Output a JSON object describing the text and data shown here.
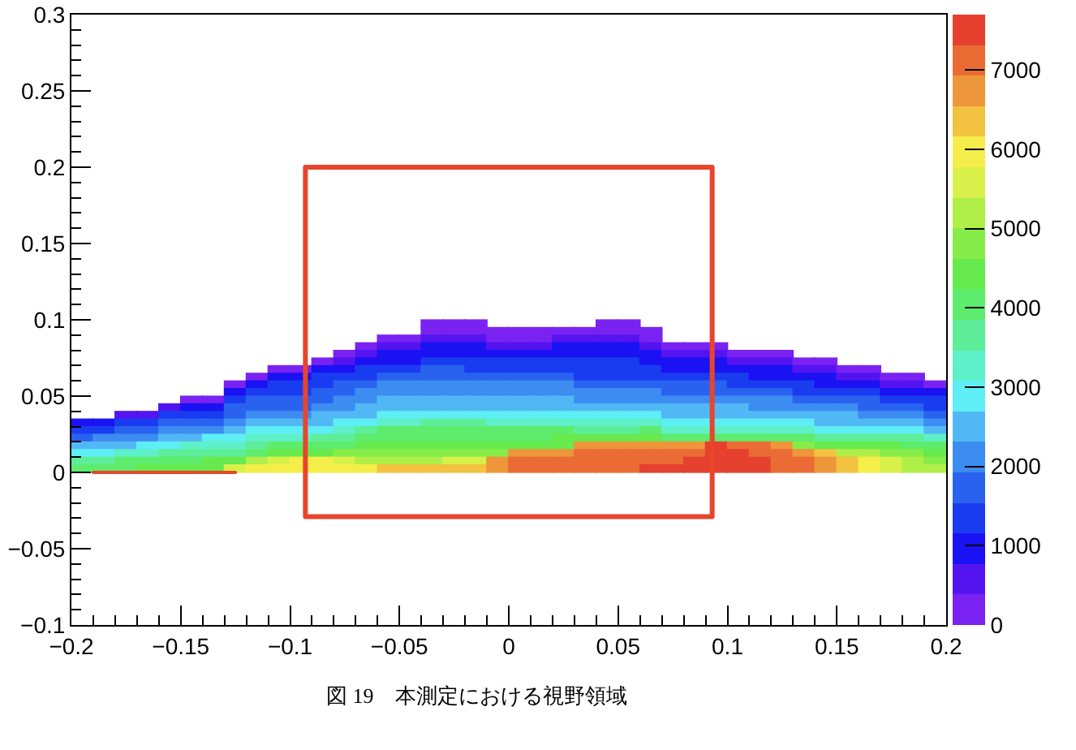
{
  "chart_data": {
    "type": "scatter",
    "marker": "square",
    "clim": [
      0,
      7700
    ],
    "cticks": [
      0,
      1000,
      2000,
      3000,
      4000,
      5000,
      6000,
      7000
    ],
    "xlim": [
      -0.2,
      0.2
    ],
    "xticks": [
      -0.2,
      {
        "value": -0.19,
        "label": null
      },
      {
        "value": -0.18,
        "label": null
      },
      {
        "value": -0.17,
        "label": null
      },
      {
        "value": -0.16,
        "label": null
      },
      -0.15,
      {
        "value": -0.14,
        "label": null
      },
      {
        "value": -0.13,
        "label": null
      },
      {
        "value": -0.12,
        "label": null
      },
      {
        "value": -0.11,
        "label": null
      },
      -0.1,
      {
        "value": -0.09,
        "label": null
      },
      {
        "value": -0.08,
        "label": null
      },
      {
        "value": -0.07,
        "label": null
      },
      {
        "value": -0.06,
        "label": null
      },
      -0.05,
      {
        "value": -0.04,
        "label": null
      },
      {
        "value": -0.03,
        "label": null
      },
      {
        "value": -0.02,
        "label": null
      },
      {
        "value": -0.01,
        "label": null
      },
      0,
      {
        "value": 0.01,
        "label": null
      },
      {
        "value": 0.02,
        "label": null
      },
      {
        "value": 0.03,
        "label": null
      },
      {
        "value": 0.04,
        "label": null
      },
      0.05,
      {
        "value": 0.06,
        "label": null
      },
      {
        "value": 0.07,
        "label": null
      },
      {
        "value": 0.08,
        "label": null
      },
      {
        "value": 0.09,
        "label": null
      },
      0.1,
      {
        "value": 0.11,
        "label": null
      },
      {
        "value": 0.12,
        "label": null
      },
      {
        "value": 0.13,
        "label": null
      },
      {
        "value": 0.14,
        "label": null
      },
      0.15,
      {
        "value": 0.16,
        "label": null
      },
      {
        "value": 0.17,
        "label": null
      },
      {
        "value": 0.18,
        "label": null
      },
      {
        "value": 0.19,
        "label": null
      },
      0.2
    ],
    "ylim": [
      -0.1,
      0.3
    ],
    "yticks": [
      -0.1,
      {
        "value": -0.09,
        "label": null
      },
      {
        "value": -0.08,
        "label": null
      },
      {
        "value": -0.07,
        "label": null
      },
      {
        "value": -0.06,
        "label": null
      },
      -0.05,
      {
        "value": -0.04,
        "label": null
      },
      {
        "value": -0.03,
        "label": null
      },
      {
        "value": -0.02,
        "label": null
      },
      {
        "value": -0.01,
        "label": null
      },
      0,
      {
        "value": 0.01,
        "label": null
      },
      {
        "value": 0.02,
        "label": null
      },
      {
        "value": 0.03,
        "label": null
      },
      {
        "value": 0.04,
        "label": null
      },
      0.05,
      {
        "value": 0.06,
        "label": null
      },
      {
        "value": 0.07,
        "label": null
      },
      {
        "value": 0.08,
        "label": null
      },
      {
        "value": 0.09,
        "label": null
      },
      0.1,
      {
        "value": 0.11,
        "label": null
      },
      {
        "value": 0.12,
        "label": null
      },
      {
        "value": 0.13,
        "label": null
      },
      {
        "value": 0.14,
        "label": null
      },
      0.15,
      {
        "value": 0.16,
        "label": null
      },
      {
        "value": 0.17,
        "label": null
      },
      {
        "value": 0.18,
        "label": null
      },
      {
        "value": 0.19,
        "label": null
      },
      0.2,
      {
        "value": 0.21,
        "label": null
      },
      {
        "value": 0.22,
        "label": null
      },
      {
        "value": 0.23,
        "label": null
      },
      {
        "value": 0.24,
        "label": null
      },
      0.25,
      {
        "value": 0.26,
        "label": null
      },
      {
        "value": 0.27,
        "label": null
      },
      {
        "value": 0.28,
        "label": null
      },
      {
        "value": 0.29,
        "label": null
      },
      0.3
    ],
    "x": [
      -0.035,
      -0.025,
      -0.015,
      0.045,
      0.055,
      -0.035,
      -0.025,
      -0.015,
      -0.005,
      0.005,
      0.015,
      0.025,
      0.035,
      0.045,
      0.055,
      0.065,
      -0.055,
      -0.045,
      -0.035,
      -0.025,
      -0.015,
      -0.005,
      0.005,
      0.015,
      0.025,
      0.035,
      0.045,
      0.055,
      0.065,
      -0.065,
      -0.055,
      -0.045,
      -0.035,
      -0.025,
      -0.015,
      -0.005,
      0.005,
      0.015,
      0.025,
      0.035,
      0.045,
      0.055,
      0.065,
      0.075,
      0.085,
      0.095,
      -0.075,
      -0.065,
      -0.055,
      -0.045,
      -0.035,
      -0.025,
      -0.015,
      -0.005,
      0.005,
      0.015,
      0.025,
      0.035,
      0.045,
      0.055,
      0.065,
      0.075,
      0.085,
      0.095,
      0.105,
      0.115,
      0.125,
      -0.085,
      -0.075,
      -0.065,
      -0.055,
      -0.045,
      -0.035,
      -0.025,
      -0.015,
      -0.005,
      0.005,
      0.015,
      0.025,
      0.035,
      0.045,
      0.055,
      0.065,
      0.075,
      0.085,
      0.095,
      0.105,
      0.115,
      0.125,
      0.135,
      0.145,
      -0.105,
      -0.095,
      -0.085,
      -0.075,
      -0.065,
      -0.055,
      -0.045,
      -0.035,
      -0.025,
      -0.015,
      -0.005,
      0.005,
      0.015,
      0.025,
      0.035,
      0.045,
      0.055,
      0.065,
      0.075,
      0.085,
      0.095,
      0.105,
      0.115,
      0.125,
      0.135,
      0.145,
      0.155,
      0.165,
      -0.115,
      -0.105,
      -0.095,
      -0.085,
      -0.075,
      -0.065,
      -0.055,
      -0.045,
      -0.035,
      -0.025,
      -0.015,
      -0.005,
      0.005,
      0.015,
      0.025,
      0.035,
      0.045,
      0.055,
      0.065,
      0.075,
      0.085,
      0.095,
      0.105,
      0.115,
      0.125,
      0.135,
      0.145,
      0.155,
      0.165,
      0.175,
      0.185,
      -0.125,
      -0.115,
      -0.105,
      -0.095,
      -0.085,
      -0.075,
      -0.065,
      -0.055,
      -0.045,
      -0.035,
      -0.025,
      -0.015,
      -0.005,
      0.005,
      0.015,
      0.025,
      0.035,
      0.045,
      0.055,
      0.065,
      0.075,
      0.085,
      0.095,
      0.105,
      0.115,
      0.125,
      0.135,
      0.145,
      0.155,
      0.165,
      0.175,
      0.185,
      0.195,
      -0.125,
      -0.115,
      -0.105,
      -0.095,
      -0.085,
      -0.075,
      -0.065,
      -0.055,
      -0.045,
      -0.035,
      -0.025,
      -0.015,
      -0.005,
      0.005,
      0.015,
      0.025,
      0.035,
      0.045,
      0.055,
      0.065,
      0.075,
      0.085,
      0.095,
      0.105,
      0.115,
      0.125,
      0.135,
      0.145,
      0.155,
      0.165,
      0.175,
      0.185,
      0.195,
      -0.145,
      -0.135,
      -0.125,
      -0.115,
      -0.105,
      -0.095,
      -0.085,
      -0.075,
      -0.065,
      -0.055,
      -0.045,
      -0.035,
      -0.025,
      -0.015,
      -0.005,
      0.005,
      0.015,
      0.025,
      0.035,
      0.045,
      0.055,
      0.065,
      0.075,
      0.085,
      0.095,
      0.105,
      0.115,
      0.125,
      0.135,
      0.145,
      0.155,
      0.165,
      0.175,
      0.185,
      0.195,
      -0.155,
      -0.145,
      -0.135,
      -0.125,
      -0.115,
      -0.105,
      -0.095,
      -0.085,
      -0.075,
      -0.065,
      -0.055,
      -0.045,
      -0.035,
      -0.025,
      -0.015,
      -0.005,
      0.005,
      0.015,
      0.025,
      0.035,
      0.045,
      0.055,
      0.065,
      0.075,
      0.085,
      0.095,
      0.105,
      0.115,
      0.125,
      0.135,
      0.145,
      0.155,
      0.165,
      0.175,
      0.185,
      0.195,
      -0.175,
      -0.165,
      -0.155,
      -0.145,
      -0.135,
      -0.125,
      -0.115,
      -0.105,
      -0.095,
      -0.085,
      -0.075,
      -0.065,
      -0.055,
      -0.045,
      -0.035,
      -0.025,
      -0.015,
      -0.005,
      0.005,
      0.015,
      0.025,
      0.035,
      0.045,
      0.055,
      0.065,
      0.075,
      0.085,
      0.095,
      0.105,
      0.115,
      0.125,
      0.135,
      0.145,
      0.155,
      0.165,
      0.175,
      0.185,
      0.195,
      -0.195,
      -0.185,
      -0.175,
      -0.165,
      -0.155,
      -0.145,
      -0.135,
      -0.125,
      -0.115,
      -0.105,
      -0.095,
      -0.085,
      -0.075,
      -0.065,
      -0.055,
      -0.045,
      -0.035,
      -0.025,
      -0.015,
      -0.005,
      0.005,
      0.015,
      0.025,
      0.035,
      0.045,
      0.055,
      0.065,
      0.075,
      0.085,
      0.095,
      0.105,
      0.115,
      0.125,
      0.135,
      0.145,
      0.155,
      0.165,
      0.175,
      0.185,
      0.195,
      -0.195,
      -0.185,
      -0.175,
      -0.165,
      -0.155,
      -0.145,
      -0.135,
      -0.125,
      -0.115,
      -0.105,
      -0.095,
      -0.085,
      -0.075,
      -0.065,
      -0.055,
      -0.045,
      -0.035,
      -0.025,
      -0.015,
      -0.005,
      0.005,
      0.015,
      0.025,
      0.035,
      0.045,
      0.055,
      0.065,
      0.075,
      0.085,
      0.095,
      0.105,
      0.115,
      0.125,
      0.135,
      0.145,
      0.155,
      0.165,
      0.175,
      0.185,
      0.195,
      -0.195,
      -0.185,
      -0.175,
      -0.165,
      -0.155,
      -0.145,
      -0.135,
      -0.125,
      -0.115,
      -0.105,
      -0.095,
      -0.085,
      -0.075,
      -0.065,
      -0.055,
      -0.045,
      -0.035,
      -0.025,
      -0.015,
      -0.005,
      0.005,
      0.015,
      0.025,
      0.035,
      0.045,
      0.055,
      0.065,
      0.075,
      0.085,
      0.095,
      0.105,
      0.115,
      0.125,
      0.135,
      0.145,
      0.155,
      0.165,
      0.175,
      0.185,
      0.195,
      -0.195,
      -0.185,
      -0.175,
      -0.165,
      -0.155,
      -0.145,
      -0.135,
      -0.125,
      -0.115,
      -0.105,
      -0.095,
      -0.085,
      -0.075,
      -0.065,
      -0.055,
      -0.045,
      -0.035,
      -0.025,
      -0.015,
      -0.005,
      0.005,
      0.015,
      0.025,
      0.035,
      0.045,
      0.055,
      0.065,
      0.075,
      0.085,
      0.095,
      0.105,
      0.115,
      0.125,
      0.135,
      0.145,
      0.155,
      0.165,
      0.175,
      0.185,
      0.195,
      -0.195,
      -0.185,
      -0.175,
      -0.165,
      -0.155,
      -0.145,
      -0.135,
      -0.125,
      -0.115,
      -0.105,
      -0.095,
      -0.085,
      -0.075,
      -0.065,
      -0.055,
      -0.045,
      -0.035,
      -0.025,
      -0.015,
      -0.005,
      0.005,
      0.015,
      0.025,
      0.035,
      0.045,
      0.055,
      0.065,
      0.075,
      0.085,
      0.095,
      0.105,
      0.115,
      0.125,
      0.135,
      0.145,
      0.155,
      0.165,
      0.175,
      0.185,
      0.195,
      -0.195,
      -0.185,
      -0.175,
      -0.165,
      -0.155,
      -0.145,
      -0.135,
      -0.125,
      -0.115,
      -0.105,
      -0.095,
      -0.085,
      -0.075,
      -0.065,
      -0.055,
      -0.045,
      -0.035,
      -0.025,
      -0.015,
      -0.005,
      0.005,
      0.015,
      0.025,
      0.035,
      0.045,
      0.055,
      0.065,
      0.075,
      0.085,
      0.095,
      0.105,
      0.115,
      0.125,
      0.135,
      0.145,
      0.155,
      0.165,
      0.175,
      0.185,
      0.195,
      -0.195,
      -0.185,
      -0.175,
      -0.165,
      -0.155,
      -0.145,
      -0.135,
      -0.125,
      -0.115,
      -0.105,
      -0.095,
      -0.085,
      -0.075,
      -0.065,
      -0.055,
      -0.045,
      -0.035,
      -0.025,
      -0.015,
      -0.005,
      0.005,
      0.015,
      0.025,
      0.035,
      0.045,
      0.055,
      0.065,
      0.075,
      0.085,
      0.095,
      0.105,
      0.115,
      0.125,
      0.135,
      0.145,
      0.155,
      0.165,
      0.175,
      0.185,
      0.195
    ],
    "values": [
      0.0975,
      0.0975,
      0.0975,
      0.0975,
      0.0975,
      0.0925,
      0.0925,
      0.0925,
      0.0925,
      0.0925,
      0.0925,
      0.0925,
      0.0925,
      0.0925,
      0.0925,
      0.0925,
      0.0875,
      0.0875,
      0.0875,
      0.0875,
      0.0875,
      0.0875,
      0.0875,
      0.0875,
      0.0875,
      0.0875,
      0.0875,
      0.0875,
      0.0875,
      0.0825,
      0.0825,
      0.0825,
      0.0825,
      0.0825,
      0.0825,
      0.0825,
      0.0825,
      0.0825,
      0.0825,
      0.0825,
      0.0825,
      0.0825,
      0.0825,
      0.0825,
      0.0825,
      0.0825,
      0.0775,
      0.0775,
      0.0775,
      0.0775,
      0.0775,
      0.0775,
      0.0775,
      0.0775,
      0.0775,
      0.0775,
      0.0775,
      0.0775,
      0.0775,
      0.0775,
      0.0775,
      0.0775,
      0.0775,
      0.0775,
      0.0775,
      0.0775,
      0.0775,
      0.0725,
      0.0725,
      0.0725,
      0.0725,
      0.0725,
      0.0725,
      0.0725,
      0.0725,
      0.0725,
      0.0725,
      0.0725,
      0.0725,
      0.0725,
      0.0725,
      0.0725,
      0.0725,
      0.0725,
      0.0725,
      0.0725,
      0.0725,
      0.0725,
      0.0725,
      0.0725,
      0.0725,
      0.0675,
      0.0675,
      0.0675,
      0.0675,
      0.0675,
      0.0675,
      0.0675,
      0.0675,
      0.0675,
      0.0675,
      0.0675,
      0.0675,
      0.0675,
      0.0675,
      0.0675,
      0.0675,
      0.0675,
      0.0675,
      0.0675,
      0.0675,
      0.0675,
      0.0675,
      0.0675,
      0.0675,
      0.0675,
      0.0675,
      0.0675,
      0.0675,
      0.0625,
      0.0625,
      0.0625,
      0.0625,
      0.0625,
      0.0625,
      0.0625,
      0.0625,
      0.0625,
      0.0625,
      0.0625,
      0.0625,
      0.0625,
      0.0625,
      0.0625,
      0.0625,
      0.0625,
      0.0625,
      0.0625,
      0.0625,
      0.0625,
      0.0625,
      0.0625,
      0.0625,
      0.0625,
      0.0625,
      0.0625,
      0.0625,
      0.0625,
      0.0625,
      0.0625,
      0.0575,
      0.0575,
      0.0575,
      0.0575,
      0.0575,
      0.0575,
      0.0575,
      0.0575,
      0.0575,
      0.0575,
      0.0575,
      0.0575,
      0.0575,
      0.0575,
      0.0575,
      0.0575,
      0.0575,
      0.0575,
      0.0575,
      0.0575,
      0.0575,
      0.0575,
      0.0575,
      0.0575,
      0.0575,
      0.0575,
      0.0575,
      0.0575,
      0.0575,
      0.0575,
      0.0575,
      0.0575,
      0.0575,
      0.0525,
      0.0525,
      0.0525,
      0.0525,
      0.0525,
      0.0525,
      0.0525,
      0.0525,
      0.0525,
      0.0525,
      0.0525,
      0.0525,
      0.0525,
      0.0525,
      0.0525,
      0.0525,
      0.0525,
      0.0525,
      0.0525,
      0.0525,
      0.0525,
      0.0525,
      0.0525,
      0.0525,
      0.0525,
      0.0525,
      0.0525,
      0.0525,
      0.0525,
      0.0525,
      0.0525,
      0.0525,
      0.0525,
      0.0475,
      0.0475,
      0.0475,
      0.0475,
      0.0475,
      0.0475,
      0.0475,
      0.0475,
      0.0475,
      0.0475,
      0.0475,
      0.0475,
      0.0475,
      0.0475,
      0.0475,
      0.0475,
      0.0475,
      0.0475,
      0.0475,
      0.0475,
      0.0475,
      0.0475,
      0.0475,
      0.0475,
      0.0475,
      0.0475,
      0.0475,
      0.0475,
      0.0475,
      0.0475,
      0.0475,
      0.0475,
      0.0475,
      0.0475,
      0.0475,
      0.0425,
      0.0425,
      0.0425,
      0.0425,
      0.0425,
      0.0425,
      0.0425,
      0.0425,
      0.0425,
      0.0425,
      0.0425,
      0.0425,
      0.0425,
      0.0425,
      0.0425,
      0.0425,
      0.0425,
      0.0425,
      0.0425,
      0.0425,
      0.0425,
      0.0425,
      0.0425,
      0.0425,
      0.0425,
      0.0425,
      0.0425,
      0.0425,
      0.0425,
      0.0425,
      0.0425,
      0.0425,
      0.0425,
      0.0425,
      0.0425,
      0.0425,
      0.0375,
      0.0375,
      0.0375,
      0.0375,
      0.0375,
      0.0375,
      0.0375,
      0.0375,
      0.0375,
      0.0375,
      0.0375,
      0.0375,
      0.0375,
      0.0375,
      0.0375,
      0.0375,
      0.0375,
      0.0375,
      0.0375,
      0.0375,
      0.0375,
      0.0375,
      0.0375,
      0.0375,
      0.0375,
      0.0375,
      0.0375,
      0.0375,
      0.0375,
      0.0375,
      0.0375,
      0.0375,
      0.0375,
      0.0375,
      0.0375,
      0.0375,
      0.0375,
      0.0375,
      0.0325,
      0.0325,
      0.0325,
      0.0325,
      0.0325,
      0.0325,
      0.0325,
      0.0325,
      0.0325,
      0.0325,
      0.0325,
      0.0325,
      0.0325,
      0.0325,
      0.0325,
      0.0325,
      0.0325,
      0.0325,
      0.0325,
      0.0325,
      0.0325,
      0.0325,
      0.0325,
      0.0325,
      0.0325,
      0.0325,
      0.0325,
      0.0325,
      0.0325,
      0.0325,
      0.0325,
      0.0325,
      0.0325,
      0.0325,
      0.0325,
      0.0325,
      0.0325,
      0.0325,
      0.0325,
      0.0325,
      0.0275,
      0.0275,
      0.0275,
      0.0275,
      0.0275,
      0.0275,
      0.0275,
      0.0275,
      0.0275,
      0.0275,
      0.0275,
      0.0275,
      0.0275,
      0.0275,
      0.0275,
      0.0275,
      0.0275,
      0.0275,
      0.0275,
      0.0275,
      0.0275,
      0.0275,
      0.0275,
      0.0275,
      0.0275,
      0.0275,
      0.0275,
      0.0275,
      0.0275,
      0.0275,
      0.0275,
      0.0275,
      0.0275,
      0.0275,
      0.0275,
      0.0275,
      0.0275,
      0.0275,
      0.0275,
      0.0275,
      0.0225,
      0.0225,
      0.0225,
      0.0225,
      0.0225,
      0.0225,
      0.0225,
      0.0225,
      0.0225,
      0.0225,
      0.0225,
      0.0225,
      0.0225,
      0.0225,
      0.0225,
      0.0225,
      0.0225,
      0.0225,
      0.0225,
      0.0225,
      0.0225,
      0.0225,
      0.0225,
      0.0225,
      0.0225,
      0.0225,
      0.0225,
      0.0225,
      0.0225,
      0.0225,
      0.0225,
      0.0225,
      0.0225,
      0.0225,
      0.0225,
      0.0225,
      0.0225,
      0.0225,
      0.0225,
      0.0225,
      0.0175,
      0.0175,
      0.0175,
      0.0175,
      0.0175,
      0.0175,
      0.0175,
      0.0175,
      0.0175,
      0.0175,
      0.0175,
      0.0175,
      0.0175,
      0.0175,
      0.0175,
      0.0175,
      0.0175,
      0.0175,
      0.0175,
      0.0175,
      0.0175,
      0.0175,
      0.0175,
      0.0175,
      0.0175,
      0.0175,
      0.0175,
      0.0175,
      0.0175,
      0.0175,
      0.0175,
      0.0175,
      0.0175,
      0.0175,
      0.0175,
      0.0175,
      0.0175,
      0.0175,
      0.0175,
      0.0175,
      0.0125,
      0.0125,
      0.0125,
      0.0125,
      0.0125,
      0.0125,
      0.0125,
      0.0125,
      0.0125,
      0.0125,
      0.0125,
      0.0125,
      0.0125,
      0.0125,
      0.0125,
      0.0125,
      0.0125,
      0.0125,
      0.0125,
      0.0125,
      0.0125,
      0.0125,
      0.0125,
      0.0125,
      0.0125,
      0.0125,
      0.0125,
      0.0125,
      0.0125,
      0.0125,
      0.0125,
      0.0125,
      0.0125,
      0.0125,
      0.0125,
      0.0125,
      0.0125,
      0.0125,
      0.0125,
      0.0125,
      0.0075,
      0.0075,
      0.0075,
      0.0075,
      0.0075,
      0.0075,
      0.0075,
      0.0075,
      0.0075,
      0.0075,
      0.0075,
      0.0075,
      0.0075,
      0.0075,
      0.0075,
      0.0075,
      0.0075,
      0.0075,
      0.0075,
      0.0075,
      0.0075,
      0.0075,
      0.0075,
      0.0075,
      0.0075,
      0.0075,
      0.0075,
      0.0075,
      0.0075,
      0.0075,
      0.0075,
      0.0075,
      0.0075,
      0.0075,
      0.0075,
      0.0075,
      0.0075,
      0.0075,
      0.0075,
      0.0075,
      0.0025,
      0.0025,
      0.0025,
      0.0025,
      0.0025,
      0.0025,
      0.0025,
      0.0025,
      0.0025,
      0.0025,
      0.0025,
      0.0025,
      0.0025,
      0.0025,
      0.0025,
      0.0025,
      0.0025,
      0.0025,
      0.0025,
      0.0025,
      0.0025,
      0.0025,
      0.0025,
      0.0025,
      0.0025,
      0.0025,
      0.0025,
      0.0025,
      0.0025,
      0.0025,
      0.0025,
      0.0025,
      0.0025,
      0.0025,
      0.0025,
      0.0025,
      0.0025,
      0.0025,
      0.0025,
      0.0025
    ],
    "cvalues": [
      200,
      200,
      200,
      200,
      200,
      200,
      200,
      200,
      200,
      200,
      200,
      200,
      200,
      200,
      200,
      200,
      200,
      200,
      600,
      600,
      600,
      200,
      200,
      200,
      600,
      600,
      600,
      600,
      200,
      200,
      600,
      600,
      1000,
      1000,
      1000,
      600,
      600,
      600,
      1000,
      1000,
      1000,
      1000,
      600,
      200,
      200,
      200,
      200,
      600,
      1000,
      1000,
      1000,
      1000,
      1000,
      1000,
      1000,
      1000,
      1000,
      1000,
      1000,
      1000,
      1000,
      600,
      600,
      600,
      200,
      200,
      200,
      200,
      600,
      1000,
      1000,
      1000,
      1300,
      1300,
      1300,
      1300,
      1300,
      1300,
      1300,
      1300,
      1300,
      1300,
      1000,
      1000,
      1000,
      1000,
      600,
      600,
      600,
      200,
      200,
      200,
      200,
      1000,
      1000,
      1300,
      1300,
      1300,
      1700,
      1700,
      1300,
      1300,
      1300,
      1300,
      1300,
      1300,
      1300,
      1300,
      1300,
      1000,
      1000,
      1000,
      1000,
      1000,
      1000,
      600,
      600,
      200,
      200,
      200,
      1000,
      1000,
      1300,
      1300,
      1300,
      1700,
      1700,
      1700,
      1700,
      1700,
      1700,
      1700,
      1700,
      1700,
      1300,
      1300,
      1300,
      1300,
      1300,
      1300,
      1300,
      1300,
      1000,
      1000,
      1000,
      1000,
      600,
      600,
      200,
      200,
      200,
      1000,
      1300,
      1300,
      1300,
      1700,
      1700,
      2100,
      2100,
      2100,
      2100,
      2100,
      2100,
      2100,
      2100,
      2100,
      1700,
      1700,
      1700,
      1700,
      1700,
      1700,
      1700,
      1300,
      1300,
      1300,
      1300,
      1000,
      1000,
      1000,
      600,
      600,
      200,
      1000,
      1300,
      1300,
      1300,
      1700,
      1700,
      2100,
      2100,
      2100,
      2100,
      2100,
      2100,
      2100,
      2100,
      2100,
      2100,
      2100,
      2100,
      2100,
      2100,
      1700,
      1700,
      1700,
      1700,
      1700,
      1700,
      1300,
      1300,
      1300,
      1300,
      1000,
      1000,
      1000,
      200,
      200,
      1300,
      1700,
      1700,
      1700,
      1700,
      2100,
      2100,
      2500,
      2500,
      2500,
      2500,
      2500,
      2500,
      2500,
      2500,
      2500,
      2100,
      2100,
      2100,
      2100,
      2100,
      2100,
      2100,
      2100,
      2100,
      2100,
      1700,
      1700,
      1700,
      1700,
      1300,
      1300,
      1300,
      600,
      1000,
      1000,
      1700,
      1700,
      1700,
      1700,
      2100,
      2100,
      2500,
      2500,
      2500,
      2500,
      2500,
      2500,
      2500,
      2500,
      2500,
      2500,
      2500,
      2500,
      2500,
      2500,
      2500,
      2500,
      2500,
      2500,
      2100,
      2100,
      2100,
      2100,
      2100,
      1700,
      1700,
      1700,
      1300,
      600,
      600,
      1300,
      1300,
      1300,
      1700,
      2100,
      2100,
      2100,
      2500,
      2500,
      2500,
      2900,
      2900,
      2900,
      2900,
      2900,
      2900,
      2900,
      2900,
      2900,
      2900,
      2900,
      2900,
      2900,
      2500,
      2500,
      2500,
      2500,
      2500,
      2500,
      2500,
      2500,
      2500,
      2100,
      2100,
      2100,
      1700,
      1000,
      1000,
      1300,
      1300,
      1700,
      1700,
      1700,
      2100,
      2500,
      2500,
      2500,
      2500,
      2900,
      2900,
      3300,
      3300,
      3600,
      3600,
      3600,
      3300,
      3300,
      3300,
      3300,
      3300,
      3300,
      3300,
      3300,
      2900,
      2900,
      2900,
      2900,
      2900,
      2900,
      2900,
      2500,
      2500,
      2500,
      2500,
      2500,
      2100,
      1300,
      1300,
      1700,
      1700,
      2100,
      2100,
      2100,
      2500,
      2900,
      2900,
      2900,
      2900,
      3300,
      3600,
      4000,
      4000,
      4000,
      4000,
      4000,
      4000,
      4000,
      4000,
      4000,
      3600,
      3600,
      3600,
      4000,
      3300,
      3300,
      3300,
      3300,
      3300,
      3300,
      3300,
      2900,
      2900,
      2900,
      2900,
      2900,
      2500,
      1700,
      2100,
      2100,
      2100,
      2500,
      2500,
      2900,
      2900,
      3300,
      3300,
      3300,
      3600,
      3600,
      4000,
      4000,
      4000,
      4000,
      4000,
      4000,
      4000,
      4000,
      4000,
      4400,
      4400,
      4400,
      4400,
      4400,
      4000,
      4000,
      4000,
      4000,
      4000,
      4000,
      4000,
      3600,
      3600,
      3600,
      3600,
      3600,
      3300,
      2500,
      2500,
      2500,
      2900,
      2900,
      3300,
      3300,
      3300,
      3600,
      4000,
      4000,
      4000,
      4000,
      4400,
      4400,
      4400,
      4400,
      4400,
      4400,
      4400,
      4400,
      4400,
      4400,
      6700,
      6700,
      6700,
      6700,
      6700,
      6700,
      7500,
      7100,
      7100,
      6700,
      4800,
      4400,
      4400,
      4400,
      4400,
      4000,
      4000,
      2900,
      2900,
      3300,
      3300,
      3600,
      3600,
      3600,
      3600,
      4000,
      4400,
      4400,
      4400,
      4800,
      4800,
      4800,
      4800,
      4800,
      4800,
      4800,
      4800,
      6700,
      6700,
      6700,
      7100,
      7100,
      7100,
      7100,
      7100,
      7100,
      7500,
      7500,
      7100,
      7100,
      6700,
      6300,
      5200,
      5200,
      4800,
      4800,
      4400,
      3600,
      3600,
      4000,
      4000,
      4000,
      4000,
      4400,
      4400,
      5200,
      5600,
      5900,
      5900,
      5600,
      5200,
      5200,
      5200,
      5200,
      5600,
      5600,
      6700,
      7100,
      7100,
      7100,
      7100,
      7100,
      7100,
      7100,
      7100,
      7500,
      7500,
      7500,
      7500,
      7100,
      7100,
      6700,
      6300,
      5900,
      5600,
      5200,
      4800,
      4000,
      4000,
      4000,
      4400,
      4400,
      4400,
      4400,
      5600,
      5900,
      5900,
      5900,
      5900,
      5900,
      5900,
      6300,
      6300,
      6300,
      6300,
      6300,
      6700,
      7100,
      7100,
      7100,
      7100,
      7100,
      7100,
      7500,
      7500,
      7500,
      7500,
      7500,
      7500,
      7100,
      7100,
      6700,
      6300,
      5900,
      5600,
      5200,
      5200
    ],
    "annotations": [
      "図 19　本測定における視野領域"
    ]
  }
}
